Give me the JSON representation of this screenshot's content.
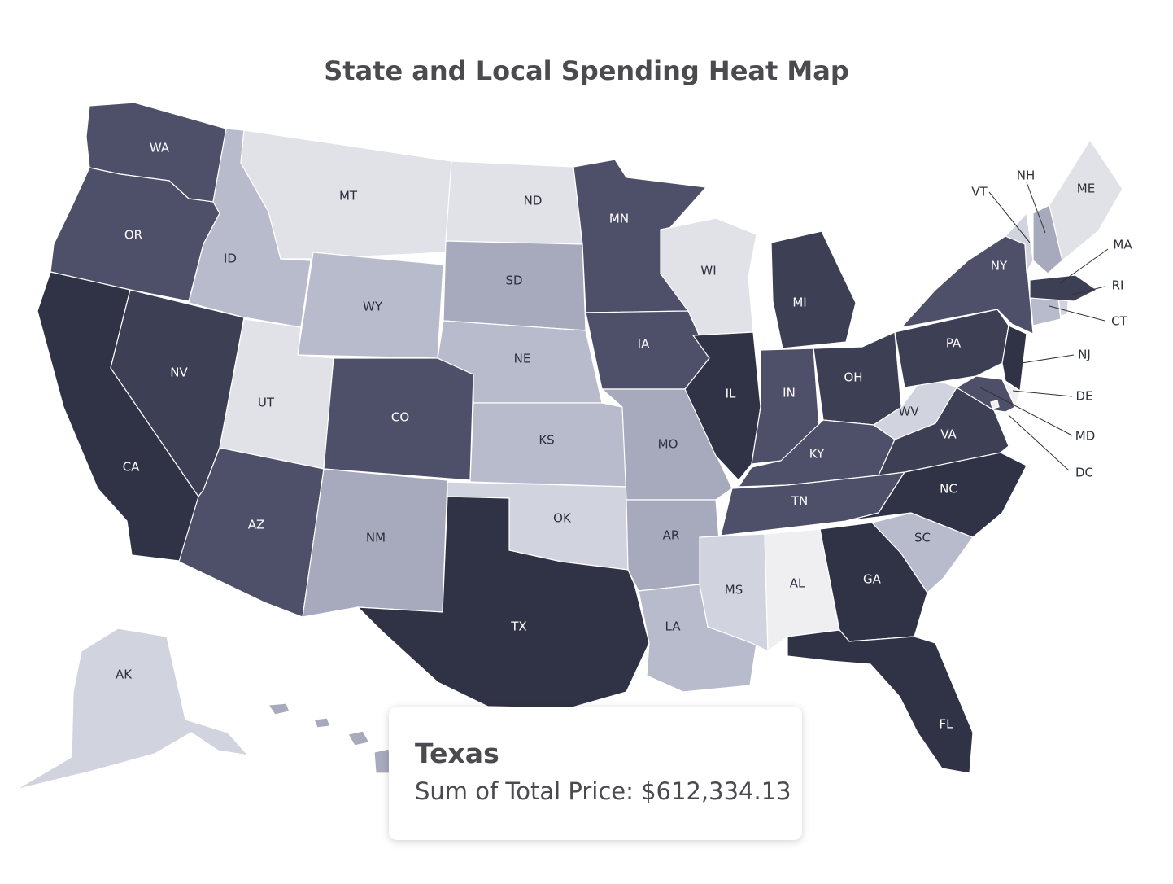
{
  "title": "State and Local Spending Heat Map",
  "colors": {
    "l1": "#efeff1",
    "l2": "#e1e2e8",
    "l3": "#d1d3de",
    "l4": "#b8bbcb",
    "l5": "#a7aabd",
    "l6": "#4d5068",
    "l7": "#3d3f55",
    "l8": "#303345"
  },
  "states": [
    {
      "abbr": "WA",
      "level": 6
    },
    {
      "abbr": "OR",
      "level": 6
    },
    {
      "abbr": "CA",
      "level": 8
    },
    {
      "abbr": "NV",
      "level": 7
    },
    {
      "abbr": "ID",
      "level": 4
    },
    {
      "abbr": "MT",
      "level": 2
    },
    {
      "abbr": "WY",
      "level": 4
    },
    {
      "abbr": "UT",
      "level": 2
    },
    {
      "abbr": "AZ",
      "level": 6
    },
    {
      "abbr": "CO",
      "level": 6
    },
    {
      "abbr": "NM",
      "level": 5
    },
    {
      "abbr": "ND",
      "level": 2
    },
    {
      "abbr": "SD",
      "level": 5
    },
    {
      "abbr": "NE",
      "level": 4
    },
    {
      "abbr": "KS",
      "level": 4
    },
    {
      "abbr": "OK",
      "level": 3
    },
    {
      "abbr": "TX",
      "level": 8
    },
    {
      "abbr": "MN",
      "level": 6
    },
    {
      "abbr": "IA",
      "level": 6
    },
    {
      "abbr": "MO",
      "level": 5
    },
    {
      "abbr": "AR",
      "level": 5
    },
    {
      "abbr": "LA",
      "level": 4
    },
    {
      "abbr": "WI",
      "level": 2
    },
    {
      "abbr": "IL",
      "level": 8
    },
    {
      "abbr": "MI",
      "level": 7
    },
    {
      "abbr": "IN",
      "level": 6
    },
    {
      "abbr": "OH",
      "level": 7
    },
    {
      "abbr": "KY",
      "level": 6
    },
    {
      "abbr": "TN",
      "level": 6
    },
    {
      "abbr": "MS",
      "level": 3
    },
    {
      "abbr": "AL",
      "level": 1
    },
    {
      "abbr": "GA",
      "level": 8
    },
    {
      "abbr": "FL",
      "level": 8
    },
    {
      "abbr": "SC",
      "level": 4
    },
    {
      "abbr": "NC",
      "level": 8
    },
    {
      "abbr": "VA",
      "level": 7
    },
    {
      "abbr": "WV",
      "level": 3
    },
    {
      "abbr": "PA",
      "level": 7
    },
    {
      "abbr": "NY",
      "level": 6
    },
    {
      "abbr": "NJ",
      "level": 8
    },
    {
      "abbr": "DE",
      "level": 1
    },
    {
      "abbr": "MD",
      "level": 6
    },
    {
      "abbr": "DC",
      "level": 1
    },
    {
      "abbr": "CT",
      "level": 4
    },
    {
      "abbr": "RI",
      "level": 3
    },
    {
      "abbr": "MA",
      "level": 7
    },
    {
      "abbr": "VT",
      "level": 3
    },
    {
      "abbr": "NH",
      "level": 5
    },
    {
      "abbr": "ME",
      "level": 2
    },
    {
      "abbr": "AK",
      "level": 3
    },
    {
      "abbr": "HI",
      "level": 5
    }
  ],
  "tooltip": {
    "state": "Texas",
    "label": "Sum of Total Price: $612,334.13"
  }
}
